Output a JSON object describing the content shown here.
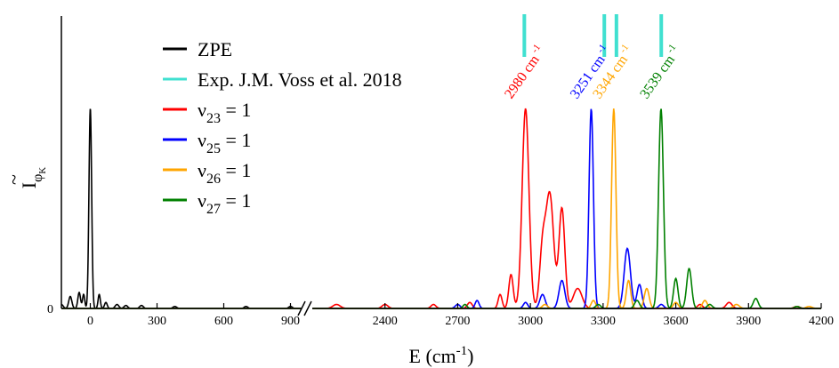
{
  "chart_data": {
    "type": "line",
    "xlabel": "E (cm-1)",
    "xlabel_main": "E (cm",
    "xlabel_exp": "-1",
    "xlabel_close": ")",
    "ylabel_symbol": "I",
    "ylabel_sub": "φ",
    "ylabel_subsub": "K",
    "ylabel_tilde": "~",
    "y_zero_label": "0",
    "x_break": true,
    "x_segments": [
      {
        "xlim": [
          -130,
          950
        ],
        "ticks": [
          0,
          300,
          600,
          900
        ],
        "tick_labels": [
          "0",
          "300",
          "600",
          "900"
        ]
      },
      {
        "xlim": [
          2100,
          4200
        ],
        "ticks": [
          2400,
          2700,
          3000,
          3300,
          3600,
          3900,
          4200
        ],
        "tick_labels": [
          "2400",
          "2700",
          "3000",
          "3300",
          "3600",
          "3900",
          "4200"
        ]
      }
    ],
    "ylim": [
      0,
      1.3
    ],
    "legend_position": "upper-left",
    "legend": [
      {
        "key": "zpe",
        "label": "ZPE",
        "color": "#000000"
      },
      {
        "key": "exp",
        "label": "Exp. J.M. Voss et al. 2018",
        "color": "#40E0D0"
      },
      {
        "key": "v23",
        "nu": "ν",
        "sub": "23",
        "rest": " = 1",
        "color": "#FF0000"
      },
      {
        "key": "v25",
        "nu": "ν",
        "sub": "25",
        "rest": " = 1",
        "color": "#0000FF"
      },
      {
        "key": "v26",
        "nu": "ν",
        "sub": "26",
        "rest": " = 1",
        "color": "#FFA500"
      },
      {
        "key": "v27",
        "nu": "ν",
        "sub": "27",
        "rest": " = 1",
        "color": "#008000"
      }
    ],
    "experimental_lines": [
      2975,
      3305,
      3355,
      3540
    ],
    "peak_labels": [
      {
        "value": "2980",
        "unit": "cm",
        "exp": "-1",
        "x": 2980,
        "color": "#FF0000"
      },
      {
        "value": "3251",
        "unit": "cm",
        "exp": "-1",
        "x": 3251,
        "color": "#0000FF"
      },
      {
        "value": "3344",
        "unit": "cm",
        "exp": "-1",
        "x": 3344,
        "color": "#FFA500"
      },
      {
        "value": "3539",
        "unit": "cm",
        "exp": "-1",
        "x": 3539,
        "color": "#008000"
      }
    ],
    "series": [
      {
        "key": "zpe",
        "color": "#000000",
        "peaks": [
          [
            0,
            1.0,
            6
          ],
          [
            -130,
            0.02,
            8
          ],
          [
            -90,
            0.06,
            7
          ],
          [
            -50,
            0.08,
            6
          ],
          [
            -30,
            0.07,
            5
          ],
          [
            40,
            0.07,
            5
          ],
          [
            70,
            0.03,
            6
          ],
          [
            120,
            0.02,
            8
          ],
          [
            160,
            0.015,
            8
          ],
          [
            230,
            0.015,
            8
          ],
          [
            380,
            0.01,
            8
          ],
          [
            700,
            0.01,
            8
          ],
          [
            900,
            0.01,
            8
          ]
        ]
      },
      {
        "key": "v23",
        "color": "#FF0000",
        "peaks": [
          [
            2980,
            1.0,
            14
          ],
          [
            3080,
            0.57,
            16
          ],
          [
            3130,
            0.5,
            12
          ],
          [
            3050,
            0.28,
            12
          ],
          [
            2920,
            0.17,
            9
          ],
          [
            2875,
            0.07,
            8
          ],
          [
            3195,
            0.1,
            18
          ],
          [
            2750,
            0.03,
            10
          ],
          [
            2600,
            0.02,
            10
          ],
          [
            2400,
            0.02,
            12
          ],
          [
            2200,
            0.02,
            15
          ],
          [
            3700,
            0.02,
            10
          ],
          [
            3820,
            0.03,
            12
          ],
          [
            4100,
            0.01,
            12
          ]
        ]
      },
      {
        "key": "v25",
        "color": "#0000FF",
        "peaks": [
          [
            3251,
            1.0,
            9
          ],
          [
            3400,
            0.3,
            13
          ],
          [
            3450,
            0.12,
            10
          ],
          [
            3130,
            0.14,
            12
          ],
          [
            3050,
            0.07,
            11
          ],
          [
            2980,
            0.03,
            9
          ],
          [
            2780,
            0.04,
            8
          ],
          [
            2700,
            0.02,
            10
          ],
          [
            3540,
            0.02,
            10
          ]
        ]
      },
      {
        "key": "v26",
        "color": "#FFA500",
        "peaks": [
          [
            3344,
            1.0,
            9
          ],
          [
            3405,
            0.14,
            9
          ],
          [
            3480,
            0.1,
            10
          ],
          [
            3260,
            0.04,
            9
          ],
          [
            3600,
            0.03,
            10
          ],
          [
            3720,
            0.04,
            10
          ],
          [
            3850,
            0.02,
            12
          ],
          [
            4150,
            0.01,
            12
          ],
          [
            3060,
            0.02,
            10
          ]
        ]
      },
      {
        "key": "v27",
        "color": "#008000",
        "peaks": [
          [
            3539,
            1.0,
            10
          ],
          [
            3600,
            0.15,
            9
          ],
          [
            3655,
            0.2,
            10
          ],
          [
            3440,
            0.04,
            10
          ],
          [
            3930,
            0.05,
            10
          ],
          [
            3740,
            0.02,
            10
          ],
          [
            2730,
            0.02,
            8
          ],
          [
            3280,
            0.02,
            10
          ],
          [
            4100,
            0.01,
            10
          ]
        ]
      }
    ]
  }
}
